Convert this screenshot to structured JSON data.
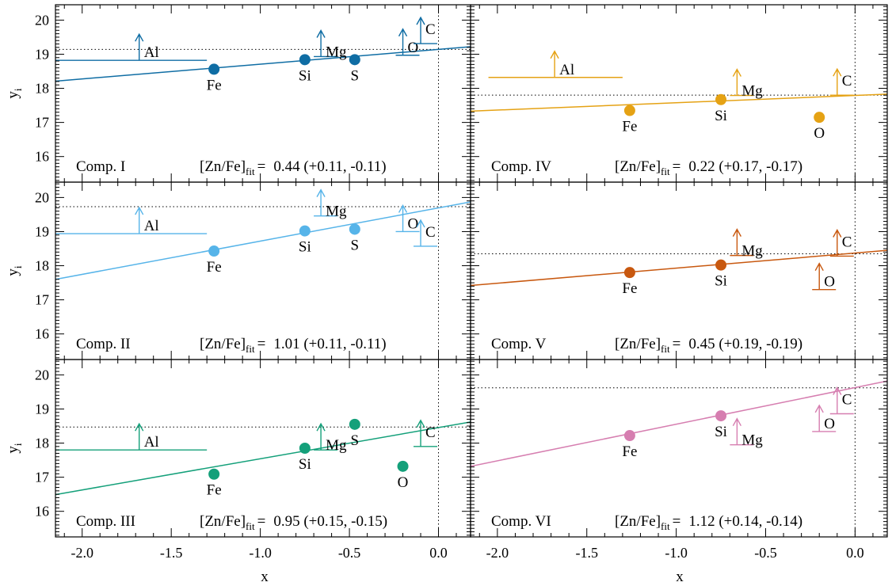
{
  "figure": {
    "xlabel": "x",
    "ylabel_main": "y",
    "ylabel_sub": "i",
    "fit_label_main": "[Zn/Fe]",
    "fit_label_sub": "fit",
    "fit_label_eq": "="
  },
  "chart_data": [
    {
      "type": "scatter",
      "panel": "Comp. I",
      "color": "#0f6da4",
      "xlim": [
        -2.15,
        0.18
      ],
      "ylim": [
        15.25,
        20.45
      ],
      "xticks": [],
      "yticks": [
        "16",
        "17",
        "18",
        "19",
        "20"
      ],
      "fit_text": "0.44 (+0.11, -0.11)",
      "fit_line": {
        "x": [
          -2.15,
          0.18
        ],
        "y": [
          18.21,
          19.22
        ]
      },
      "horizontal_ref": 19.14,
      "points": [
        {
          "label": "Fe",
          "x": -1.26,
          "y": 18.56
        },
        {
          "label": "Si",
          "x": -0.75,
          "y": 18.84
        },
        {
          "label": "S",
          "x": -0.47,
          "y": 18.84
        }
      ],
      "lower_limits": [
        {
          "label": "Al",
          "x": -1.68,
          "y": 18.82,
          "x_range": [
            -2.15,
            -1.3
          ]
        },
        {
          "label": "Mg",
          "x": -0.66,
          "y": 18.93
        },
        {
          "label": "O",
          "x": -0.2,
          "y": 18.97
        },
        {
          "label": "C",
          "x": -0.1,
          "y": 19.31
        }
      ]
    },
    {
      "type": "scatter",
      "panel": "Comp. IV",
      "color": "#e5a214",
      "xlim": [
        -2.15,
        0.18
      ],
      "ylim": [
        15.25,
        20.45
      ],
      "xticks": [],
      "yticks": [],
      "fit_text": "0.22 (+0.17, -0.17)",
      "fit_line": {
        "x": [
          -2.15,
          0.18
        ],
        "y": [
          17.33,
          17.83
        ]
      },
      "horizontal_ref": 17.8,
      "points": [
        {
          "label": "Fe",
          "x": -1.26,
          "y": 17.35
        },
        {
          "label": "Si",
          "x": -0.75,
          "y": 17.67
        },
        {
          "label": "O",
          "x": -0.2,
          "y": 17.15
        }
      ],
      "lower_limits": [
        {
          "label": "Al",
          "x": -1.68,
          "y": 18.32,
          "x_range": [
            -2.05,
            -1.3
          ]
        },
        {
          "label": "Mg",
          "x": -0.66,
          "y": 17.79
        },
        {
          "label": "C",
          "x": -0.1,
          "y": 17.8
        }
      ]
    },
    {
      "type": "scatter",
      "panel": "Comp. II",
      "color": "#56b4e9",
      "xlim": [
        -2.15,
        0.18
      ],
      "ylim": [
        15.25,
        20.45
      ],
      "xticks": [],
      "yticks": [
        "16",
        "17",
        "18",
        "19",
        "20"
      ],
      "fit_text": "1.01 (+0.11, -0.11)",
      "fit_line": {
        "x": [
          -2.15,
          0.18
        ],
        "y": [
          17.6,
          19.87
        ]
      },
      "horizontal_ref": 19.73,
      "points": [
        {
          "label": "Fe",
          "x": -1.26,
          "y": 18.43
        },
        {
          "label": "Si",
          "x": -0.75,
          "y": 19.02
        },
        {
          "label": "S",
          "x": -0.47,
          "y": 19.07
        }
      ],
      "lower_limits": [
        {
          "label": "Al",
          "x": -1.68,
          "y": 18.94,
          "x_range": [
            -2.15,
            -1.3
          ]
        },
        {
          "label": "Mg",
          "x": -0.66,
          "y": 19.46
        },
        {
          "label": "O",
          "x": -0.2,
          "y": 19.0
        },
        {
          "label": "C",
          "x": -0.1,
          "y": 18.57
        }
      ]
    },
    {
      "type": "scatter",
      "panel": "Comp. V",
      "color": "#c8580f",
      "xlim": [
        -2.15,
        0.18
      ],
      "ylim": [
        15.25,
        20.45
      ],
      "xticks": [],
      "yticks": [],
      "fit_text": "0.45 (+0.19, -0.19)",
      "fit_line": {
        "x": [
          -2.15,
          0.18
        ],
        "y": [
          17.42,
          18.45
        ]
      },
      "horizontal_ref": 18.35,
      "points": [
        {
          "label": "Fe",
          "x": -1.26,
          "y": 17.8
        },
        {
          "label": "Si",
          "x": -0.75,
          "y": 18.02
        }
      ],
      "lower_limits": [
        {
          "label": "Mg",
          "x": -0.66,
          "y": 18.3
        },
        {
          "label": "C",
          "x": -0.1,
          "y": 18.28
        },
        {
          "label": "O",
          "x": -0.2,
          "y": 17.3
        }
      ]
    },
    {
      "type": "scatter",
      "panel": "Comp. III",
      "color": "#14a07a",
      "xlim": [
        -2.15,
        0.18
      ],
      "ylim": [
        15.25,
        20.45
      ],
      "xticks": [
        "-2.0",
        "-1.5",
        "-1.0",
        "-0.5",
        "0.0"
      ],
      "yticks": [
        "16",
        "17",
        "18",
        "19",
        "20"
      ],
      "fit_text": "0.95 (+0.15, -0.15)",
      "fit_line": {
        "x": [
          -2.15,
          0.18
        ],
        "y": [
          16.49,
          18.62
        ]
      },
      "horizontal_ref": 18.47,
      "points": [
        {
          "label": "Fe",
          "x": -1.26,
          "y": 17.09
        },
        {
          "label": "Si",
          "x": -0.75,
          "y": 17.85
        },
        {
          "label": "S",
          "x": -0.47,
          "y": 18.55
        },
        {
          "label": "O",
          "x": -0.2,
          "y": 17.32
        }
      ],
      "lower_limits": [
        {
          "label": "Al",
          "x": -1.68,
          "y": 17.8,
          "x_range": [
            -2.15,
            -1.3
          ]
        },
        {
          "label": "Mg",
          "x": -0.66,
          "y": 17.8
        },
        {
          "label": "C",
          "x": -0.1,
          "y": 17.9
        }
      ]
    },
    {
      "type": "scatter",
      "panel": "Comp. VI",
      "color": "#d67eb0",
      "xlim": [
        -2.15,
        0.18
      ],
      "ylim": [
        15.25,
        20.45
      ],
      "xticks": [
        "-2.0",
        "-1.5",
        "-1.0",
        "-0.5",
        "0.0"
      ],
      "yticks": [],
      "fit_text": "1.12 (+0.14, -0.14)",
      "fit_line": {
        "x": [
          -2.15,
          0.18
        ],
        "y": [
          17.32,
          19.82
        ]
      },
      "horizontal_ref": 19.62,
      "points": [
        {
          "label": "Fe",
          "x": -1.26,
          "y": 18.22
        },
        {
          "label": "Si",
          "x": -0.75,
          "y": 18.8
        }
      ],
      "lower_limits": [
        {
          "label": "Mg",
          "x": -0.66,
          "y": 17.95
        },
        {
          "label": "O",
          "x": -0.2,
          "y": 18.34
        },
        {
          "label": "C",
          "x": -0.1,
          "y": 18.86
        }
      ]
    }
  ]
}
